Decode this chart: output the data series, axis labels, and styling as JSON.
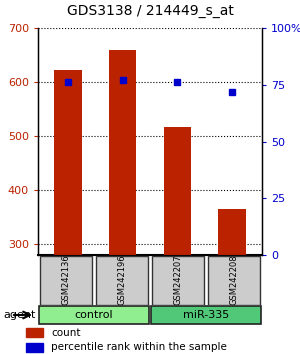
{
  "title": "GDS3138 / 214449_s_at",
  "samples": [
    "GSM242136",
    "GSM242196",
    "GSM242207",
    "GSM242208"
  ],
  "counts": [
    623,
    660,
    517,
    365
  ],
  "percentile_ranks": [
    76,
    77,
    76,
    72
  ],
  "groups": [
    {
      "label": "control",
      "samples": [
        0,
        1
      ],
      "color": "#90EE90"
    },
    {
      "label": "miR-335",
      "samples": [
        2,
        3
      ],
      "color": "#50C878"
    }
  ],
  "bar_color": "#BB2200",
  "dot_color": "#0000CC",
  "ylim_left": [
    280,
    700
  ],
  "ylim_right": [
    0,
    100
  ],
  "yticks_left": [
    300,
    400,
    500,
    600,
    700
  ],
  "yticks_right": [
    0,
    25,
    50,
    75,
    100
  ],
  "agent_label": "agent",
  "legend_count": "count",
  "legend_pct": "percentile rank within the sample",
  "bar_width": 0.5,
  "background_color": "#ffffff",
  "sample_box_color": "#CCCCCC",
  "light_green": "#AAFFAA",
  "dark_green": "#44CC44"
}
